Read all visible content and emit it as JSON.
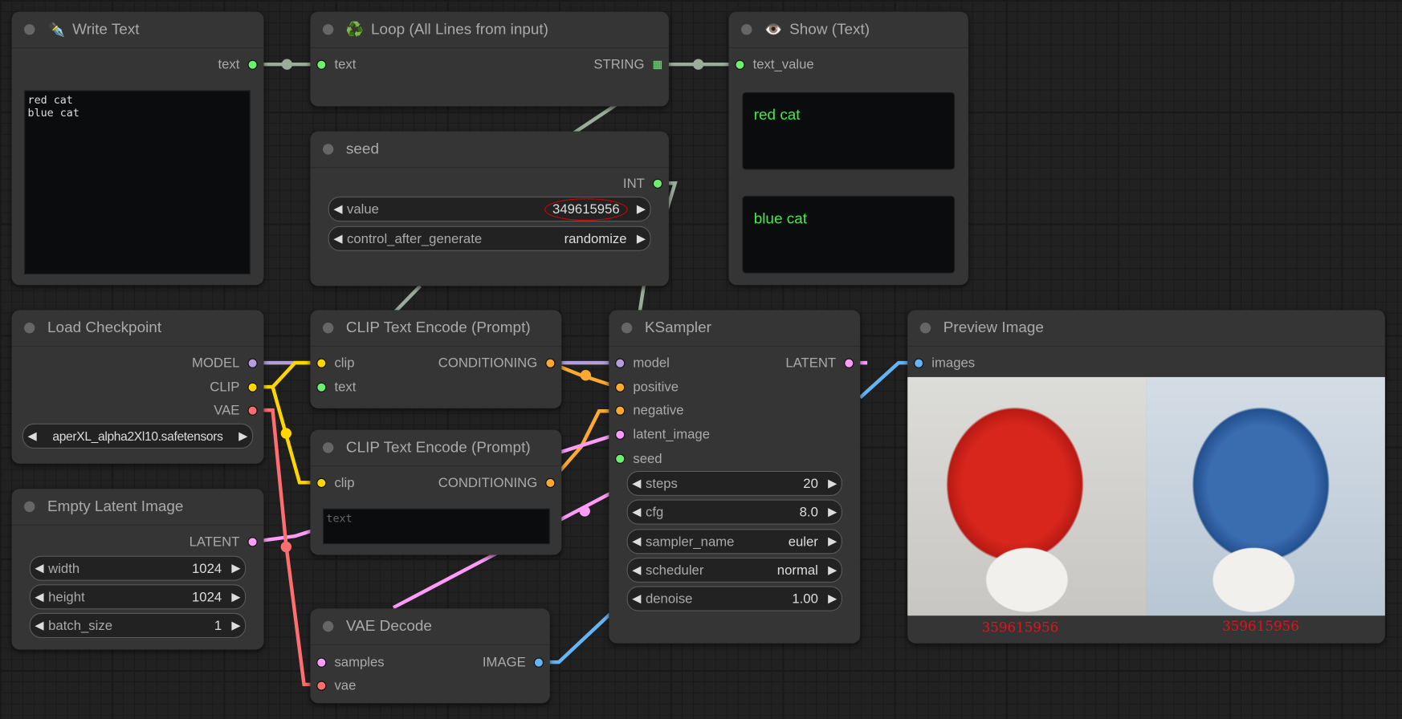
{
  "colors": {
    "string": "#6df06d",
    "model": "#b39ddb",
    "clip": "#ffd500",
    "vae": "#ff6e6e",
    "conditioning": "#ffa931",
    "latent": "#ff9cf9",
    "image": "#64b5f6",
    "wire_gray": "#9aad9a"
  },
  "write_text": {
    "title": "Write Text",
    "icon": "fountain-pen-icon",
    "out": "text",
    "value": "red cat\nblue cat"
  },
  "loop": {
    "title": "Loop (All Lines from input)",
    "icon": "recycle-icon",
    "in": "text",
    "out": "STRING"
  },
  "show": {
    "title": "Show (Text)",
    "icon": "eye-icon",
    "in": "text_value",
    "values": [
      "red cat",
      "blue cat"
    ]
  },
  "seed": {
    "title": "seed",
    "out": "INT",
    "value_label": "value",
    "value": "349615956",
    "control_label": "control_after_generate",
    "control": "randomize"
  },
  "checkpoint": {
    "title": "Load Checkpoint",
    "outs": [
      "MODEL",
      "CLIP",
      "VAE"
    ],
    "ckpt_name": "aperXL_alpha2Xl10.safetensors"
  },
  "clip1": {
    "title": "CLIP Text Encode (Prompt)",
    "ins": [
      "clip",
      "text"
    ],
    "out": "CONDITIONING"
  },
  "clip2": {
    "title": "CLIP Text Encode (Prompt)",
    "in": "clip",
    "out": "CONDITIONING",
    "placeholder": "text"
  },
  "ksampler": {
    "title": "KSampler",
    "ins": [
      "model",
      "positive",
      "negative",
      "latent_image",
      "seed"
    ],
    "out": "LATENT",
    "widgets": [
      {
        "label": "steps",
        "value": "20"
      },
      {
        "label": "cfg",
        "value": "8.0"
      },
      {
        "label": "sampler_name",
        "value": "euler"
      },
      {
        "label": "scheduler",
        "value": "normal"
      },
      {
        "label": "denoise",
        "value": "1.00"
      }
    ]
  },
  "preview": {
    "title": "Preview Image",
    "in": "images",
    "captions": [
      "359615956",
      "359615956"
    ]
  },
  "latent": {
    "title": "Empty Latent Image",
    "out": "LATENT",
    "widgets": [
      {
        "label": "width",
        "value": "1024"
      },
      {
        "label": "height",
        "value": "1024"
      },
      {
        "label": "batch_size",
        "value": "1"
      }
    ]
  },
  "vae_decode": {
    "title": "VAE Decode",
    "ins": [
      "samples",
      "vae"
    ],
    "out": "IMAGE"
  }
}
